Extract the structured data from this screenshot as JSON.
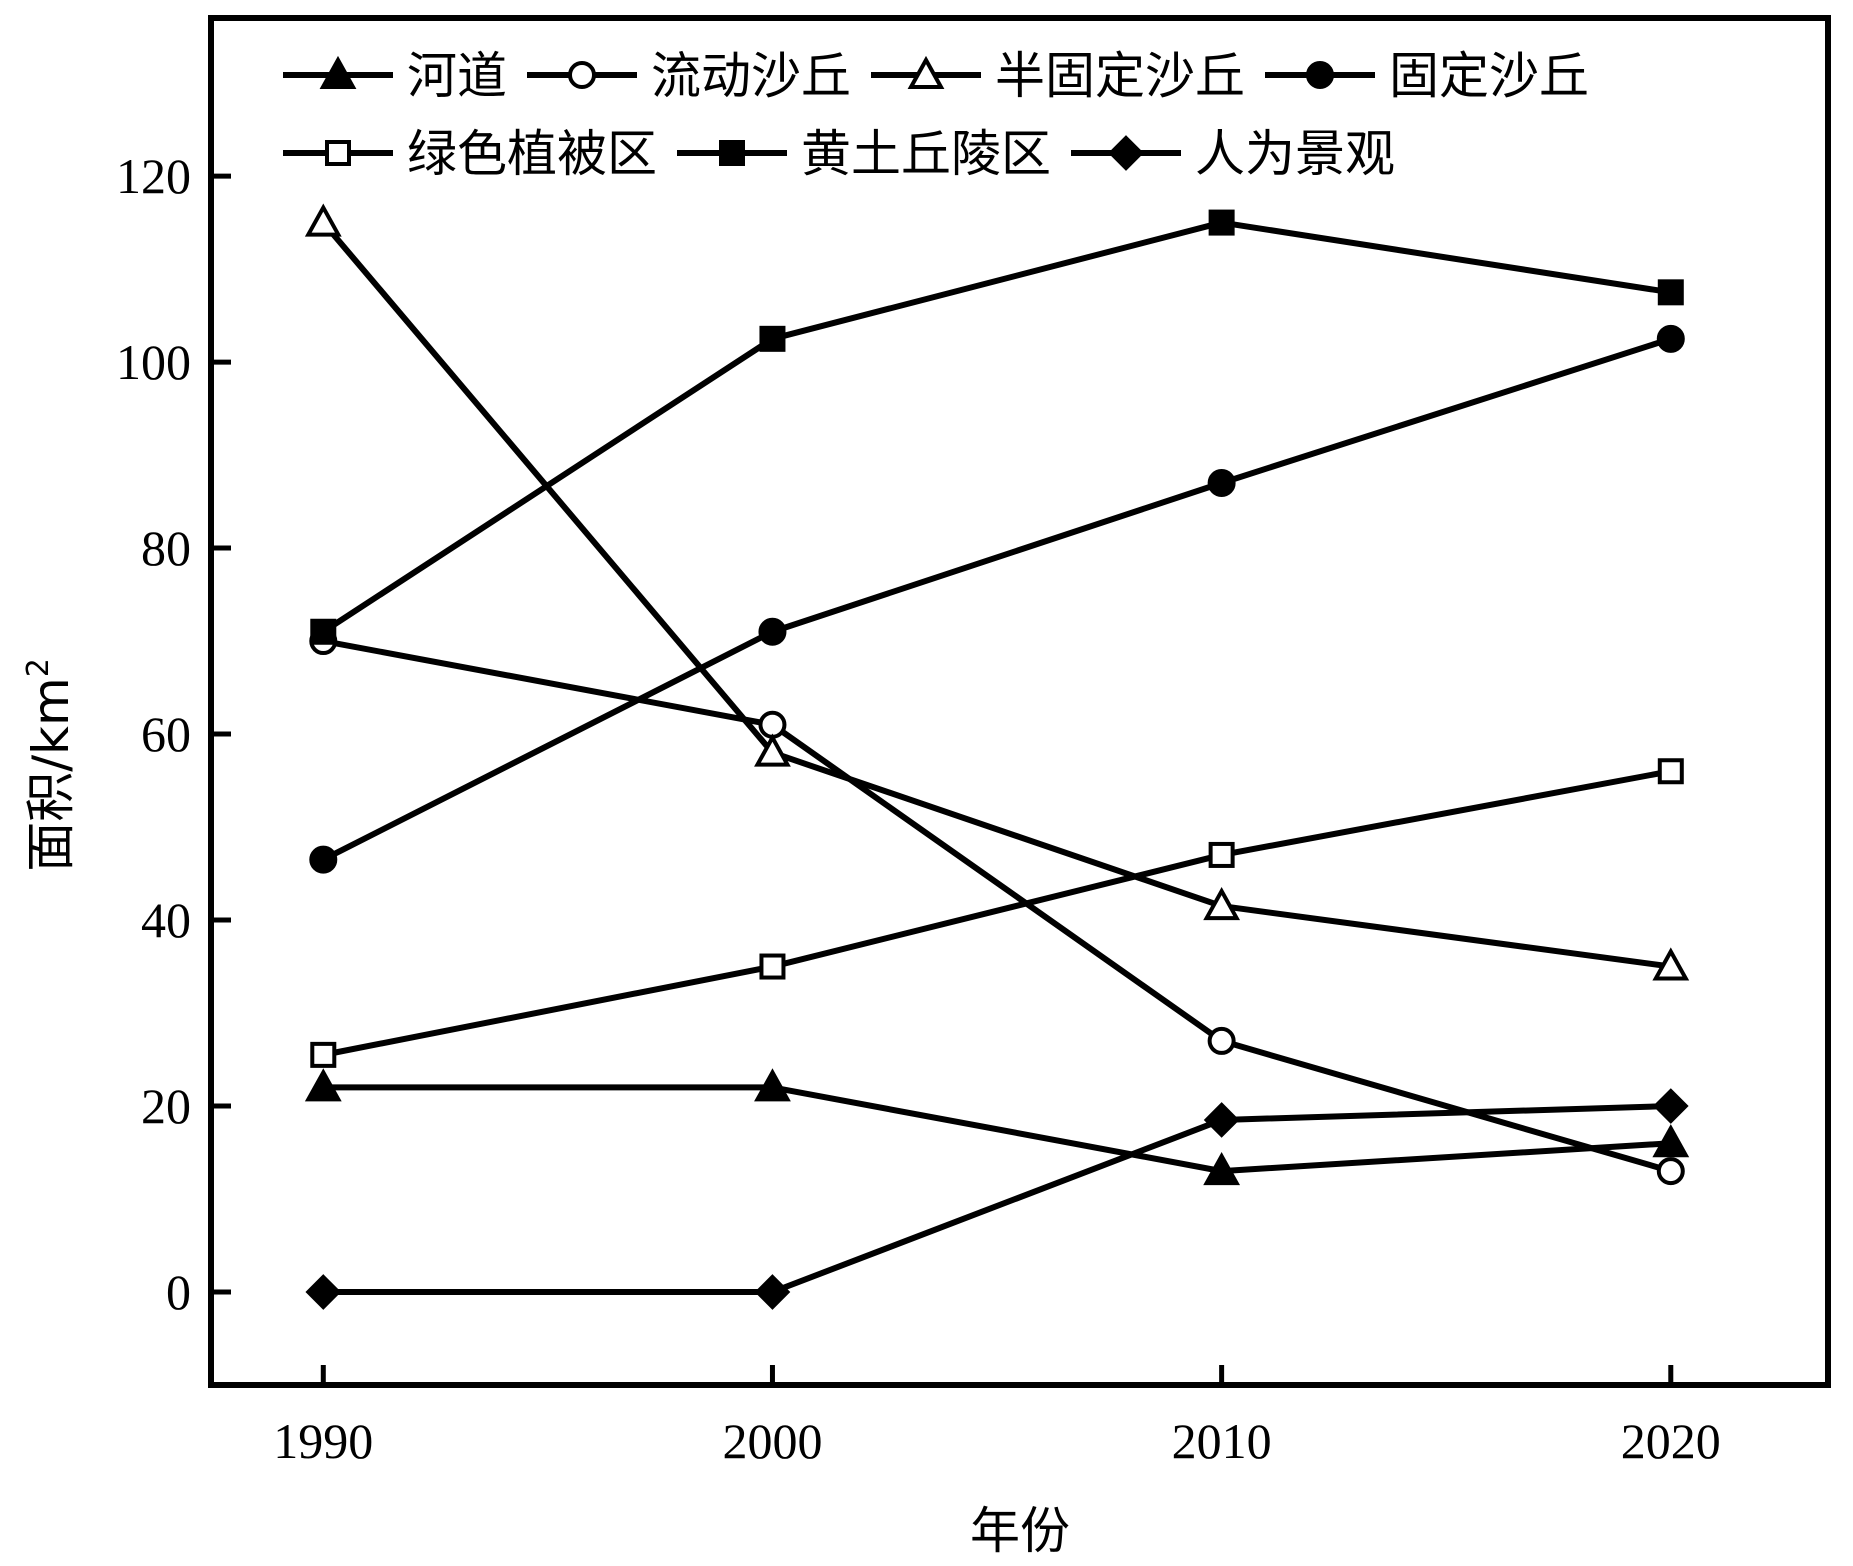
{
  "chart_data": {
    "type": "line",
    "xlabel": "年份",
    "ylabel": "面积/km²",
    "ylabel_main": "面积/km",
    "ylabel_sup": "2",
    "x": [
      1990,
      2000,
      2010,
      2020
    ],
    "xlim": [
      1987.5,
      2023.5
    ],
    "ylim": [
      -10,
      137
    ],
    "xticks": [
      "1990",
      "2000",
      "2010",
      "2020"
    ],
    "yticks": [
      "0",
      "20",
      "40",
      "60",
      "80",
      "100",
      "120"
    ],
    "grid": false,
    "legend_position": "top",
    "series": [
      {
        "name": "河道",
        "marker": "triangle-filled",
        "values": [
          22,
          22,
          13,
          16
        ]
      },
      {
        "name": "流动沙丘",
        "marker": "circle-open",
        "values": [
          70,
          61,
          27,
          13
        ]
      },
      {
        "name": "半固定沙丘",
        "marker": "triangle-open",
        "values": [
          115,
          58,
          41.5,
          35
        ]
      },
      {
        "name": "固定沙丘",
        "marker": "circle-filled",
        "values": [
          46.5,
          71,
          87,
          102.5
        ]
      },
      {
        "name": "绿色植被区",
        "marker": "square-open",
        "values": [
          25.5,
          35,
          47,
          56
        ]
      },
      {
        "name": "黄土丘陵区",
        "marker": "square-filled",
        "values": [
          71,
          102.5,
          115,
          107.5
        ]
      },
      {
        "name": "人为景观",
        "marker": "diamond-filled",
        "values": [
          0,
          0,
          18.5,
          20
        ]
      }
    ]
  }
}
